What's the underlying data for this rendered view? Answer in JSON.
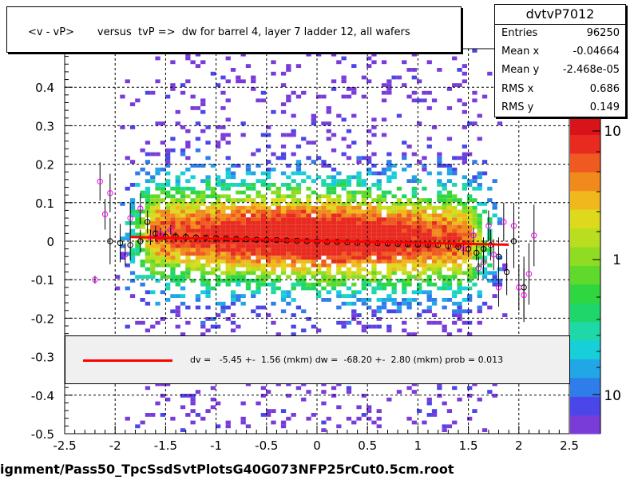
{
  "title": "<v - vP>       versus  tvP =>  dw for barrel 4, layer 7 ladder 12, all wafers",
  "footer": "ignment/Pass50_TpcSsdSvtPlotsG40G073NFP25rCut0.5cm.root",
  "stats": {
    "name": "dvtvP7012",
    "rows": [
      {
        "key": "Entries",
        "value": "96250"
      },
      {
        "key": "Mean x",
        "value": "-0.04664"
      },
      {
        "key": "Mean y",
        "value": "-2.468e-05"
      },
      {
        "key": "RMS x",
        "value": "0.686"
      },
      {
        "key": "RMS y",
        "value": "0.149"
      }
    ]
  },
  "legend": {
    "text": "dv =   -5.45 +-  1.56 (mkm) dw =  -68.20 +-  2.80 (mkm) prob = 0.013",
    "line_color": "#ff0000"
  },
  "colorbar_labels": [
    "10",
    "1",
    "10"
  ],
  "chart_data": {
    "type": "heatmap",
    "xlim": [
      -2.5,
      2.5
    ],
    "ylim": [
      -0.5,
      0.5
    ],
    "x_ticks": [
      "-2.5",
      "-2",
      "-1.5",
      "-1",
      "-0.5",
      "0",
      "0.5",
      "1",
      "1.5",
      "2",
      "2.5"
    ],
    "y_ticks": [
      "-0.5",
      "-0.4",
      "-0.3",
      "-0.2",
      "-0.1",
      "0",
      "0.1",
      "0.2",
      "0.3",
      "0.4",
      "0.5"
    ],
    "y_tick_values": [
      -0.5,
      -0.4,
      -0.3,
      -0.2,
      -0.1,
      0,
      0.1,
      0.2,
      0.3,
      0.4,
      0.5
    ],
    "grid": true,
    "fit_line": {
      "x": [
        -1.85,
        1.9
      ],
      "y": [
        0.011,
        -0.009
      ],
      "color": "#ff0000"
    },
    "profile_black": [
      {
        "x": -2.05,
        "y": 0.0,
        "e": 0.06
      },
      {
        "x": -1.95,
        "y": -0.005,
        "e": 0.05
      },
      {
        "x": -1.85,
        "y": -0.01,
        "e": 0.04
      },
      {
        "x": -1.75,
        "y": 0.0,
        "e": 0.03
      },
      {
        "x": -1.68,
        "y": 0.05,
        "e": 0.03
      },
      {
        "x": -1.6,
        "y": 0.02,
        "e": 0.02
      },
      {
        "x": -1.5,
        "y": 0.012,
        "e": 0.015
      },
      {
        "x": -1.4,
        "y": 0.012,
        "e": 0.012
      },
      {
        "x": -1.3,
        "y": 0.011,
        "e": 0.01
      },
      {
        "x": -1.2,
        "y": 0.01,
        "e": 0.008
      },
      {
        "x": -1.1,
        "y": 0.009,
        "e": 0.006
      },
      {
        "x": -1.0,
        "y": 0.008,
        "e": 0.005
      },
      {
        "x": -0.9,
        "y": 0.007,
        "e": 0.004
      },
      {
        "x": -0.8,
        "y": 0.006,
        "e": 0.004
      },
      {
        "x": -0.7,
        "y": 0.005,
        "e": 0.003
      },
      {
        "x": -0.6,
        "y": 0.004,
        "e": 0.003
      },
      {
        "x": -0.5,
        "y": 0.003,
        "e": 0.003
      },
      {
        "x": -0.4,
        "y": 0.003,
        "e": 0.003
      },
      {
        "x": -0.3,
        "y": 0.002,
        "e": 0.003
      },
      {
        "x": -0.2,
        "y": 0.001,
        "e": 0.003
      },
      {
        "x": -0.1,
        "y": 0.0,
        "e": 0.003
      },
      {
        "x": 0.0,
        "y": -0.001,
        "e": 0.003
      },
      {
        "x": 0.1,
        "y": -0.002,
        "e": 0.003
      },
      {
        "x": 0.2,
        "y": -0.002,
        "e": 0.003
      },
      {
        "x": 0.3,
        "y": -0.003,
        "e": 0.003
      },
      {
        "x": 0.4,
        "y": -0.004,
        "e": 0.003
      },
      {
        "x": 0.5,
        "y": -0.004,
        "e": 0.003
      },
      {
        "x": 0.6,
        "y": -0.005,
        "e": 0.004
      },
      {
        "x": 0.7,
        "y": -0.006,
        "e": 0.004
      },
      {
        "x": 0.8,
        "y": -0.007,
        "e": 0.004
      },
      {
        "x": 0.9,
        "y": -0.008,
        "e": 0.005
      },
      {
        "x": 1.0,
        "y": -0.009,
        "e": 0.006
      },
      {
        "x": 1.1,
        "y": -0.01,
        "e": 0.007
      },
      {
        "x": 1.2,
        "y": -0.01,
        "e": 0.008
      },
      {
        "x": 1.3,
        "y": -0.012,
        "e": 0.01
      },
      {
        "x": 1.4,
        "y": -0.015,
        "e": 0.012
      },
      {
        "x": 1.5,
        "y": -0.02,
        "e": 0.015
      },
      {
        "x": 1.58,
        "y": -0.03,
        "e": 0.02
      },
      {
        "x": 1.65,
        "y": -0.02,
        "e": 0.03
      },
      {
        "x": 1.72,
        "y": -0.01,
        "e": 0.04
      },
      {
        "x": 1.8,
        "y": -0.04,
        "e": 0.05
      },
      {
        "x": 1.88,
        "y": -0.08,
        "e": 0.06
      },
      {
        "x": 1.95,
        "y": 0.0,
        "e": 0.07
      },
      {
        "x": 2.05,
        "y": -0.12,
        "e": 0.08
      }
    ],
    "profile_magenta": [
      {
        "x": -2.2,
        "y": -0.1,
        "e": 0.01
      },
      {
        "x": -2.15,
        "y": 0.155,
        "e": 0.05
      },
      {
        "x": -2.1,
        "y": 0.07,
        "e": 0.04
      },
      {
        "x": -2.05,
        "y": 0.125,
        "e": 0.05
      },
      {
        "x": -1.9,
        "y": -0.035,
        "e": 0.03
      },
      {
        "x": -1.85,
        "y": 0.06,
        "e": 0.04
      },
      {
        "x": -1.75,
        "y": 0.085,
        "e": 0.04
      },
      {
        "x": -1.65,
        "y": 0.01,
        "e": 0.02
      },
      {
        "x": -1.55,
        "y": 0.02,
        "e": 0.015
      },
      {
        "x": -1.45,
        "y": 0.03,
        "e": 0.012
      },
      {
        "x": 1.45,
        "y": -0.02,
        "e": 0.015
      },
      {
        "x": 1.55,
        "y": 0.015,
        "e": 0.02
      },
      {
        "x": 1.6,
        "y": -0.07,
        "e": 0.03
      },
      {
        "x": 1.65,
        "y": -0.055,
        "e": 0.03
      },
      {
        "x": 1.7,
        "y": 0.04,
        "e": 0.04
      },
      {
        "x": 1.75,
        "y": -0.035,
        "e": 0.04
      },
      {
        "x": 1.8,
        "y": -0.12,
        "e": 0.05
      },
      {
        "x": 1.85,
        "y": 0.05,
        "e": 0.05
      },
      {
        "x": 1.95,
        "y": 0.04,
        "e": 0.06
      },
      {
        "x": 2.0,
        "y": -0.12,
        "e": 0.06
      },
      {
        "x": 2.05,
        "y": -0.14,
        "e": 0.07
      },
      {
        "x": 2.1,
        "y": -0.085,
        "e": 0.08
      },
      {
        "x": 2.15,
        "y": 0.015,
        "e": 0.08
      }
    ]
  }
}
